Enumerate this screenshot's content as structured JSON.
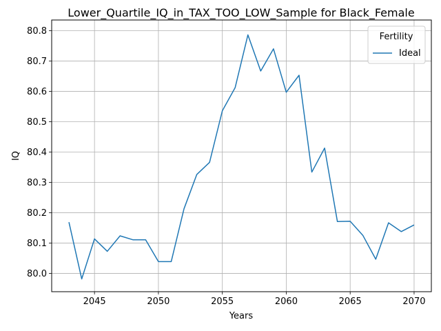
{
  "chart_data": {
    "type": "line",
    "title": "Lower_Quartile_IQ_in_TAX_TOO_LOW_Sample for Black_Female",
    "xlabel": "Years",
    "ylabel": "IQ",
    "xlim": [
      2041.65,
      2071.35
    ],
    "ylim": [
      79.94,
      80.835
    ],
    "xticks": [
      2045,
      2050,
      2055,
      2060,
      2065,
      2070
    ],
    "yticks": [
      80.0,
      80.1,
      80.2,
      80.3,
      80.4,
      80.5,
      80.6,
      80.7,
      80.8
    ],
    "ytick_labels": [
      "80.0",
      "80.1",
      "80.2",
      "80.3",
      "80.4",
      "80.5",
      "80.6",
      "80.7",
      "80.8"
    ],
    "grid": true,
    "legend": {
      "title": "Fertility",
      "position": "top-right"
    },
    "series": [
      {
        "name": "Ideal",
        "color": "#1f77b4",
        "x": [
          2043,
          2044,
          2045,
          2046,
          2047,
          2048,
          2049,
          2050,
          2051,
          2052,
          2053,
          2054,
          2055,
          2056,
          2057,
          2058,
          2059,
          2060,
          2061,
          2062,
          2063,
          2064,
          2065,
          2066,
          2067,
          2068,
          2069,
          2070
        ],
        "y": [
          80.169,
          79.982,
          80.114,
          80.073,
          80.124,
          80.111,
          80.111,
          80.039,
          80.039,
          80.213,
          80.326,
          80.366,
          80.536,
          80.612,
          80.786,
          80.667,
          80.74,
          80.597,
          80.653,
          80.334,
          80.413,
          80.171,
          80.172,
          80.125,
          80.047,
          80.167,
          80.138,
          80.16
        ]
      }
    ]
  }
}
